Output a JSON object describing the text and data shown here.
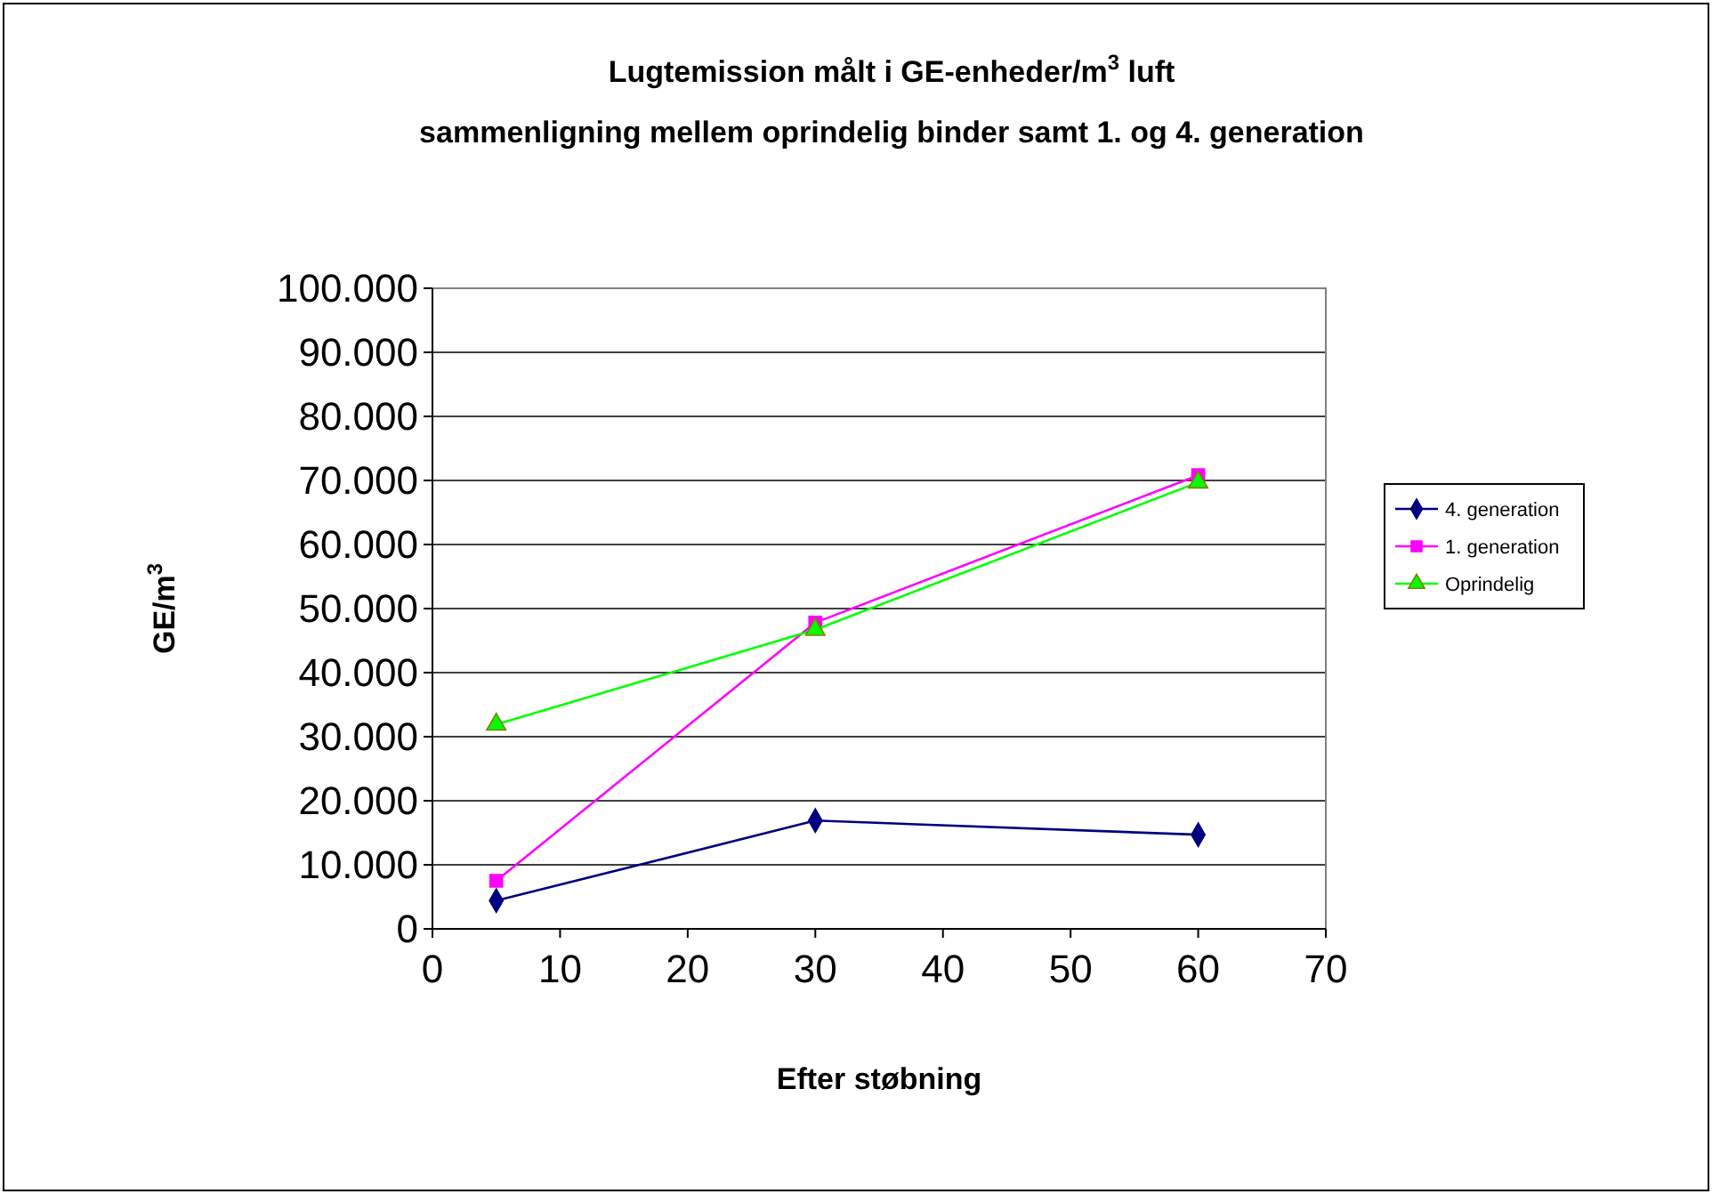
{
  "chart_data": {
    "type": "line",
    "title": "Lugtemission målt i GE-enheder/m$^{3}$ luft",
    "subtitle": "sammenligning mellem oprindelig binder samt 1. og 4. generation",
    "xlabel": "Efter støbning",
    "ylabel": "GE/m$^{3}$",
    "x": [
      5,
      30,
      60
    ],
    "series": [
      {
        "name": "4. generation",
        "color": "#000080",
        "marker": "diamond",
        "values": [
          4400,
          16900,
          14700
        ]
      },
      {
        "name": "1. generation",
        "color": "#ff00ff",
        "marker": "square",
        "values": [
          7500,
          47800,
          70800
        ]
      },
      {
        "name": "Oprindelig",
        "color": "#00ff00",
        "marker": "triangle",
        "values": [
          31900,
          46700,
          69700
        ]
      }
    ],
    "xlim": [
      0,
      70
    ],
    "xticks": [
      0,
      10,
      20,
      30,
      40,
      50,
      60,
      70
    ],
    "ylim": [
      0,
      100000
    ],
    "yticks": [
      {
        "value": 0,
        "label": "0"
      },
      {
        "value": 10000,
        "label": "10.000"
      },
      {
        "value": 20000,
        "label": "20.000"
      },
      {
        "value": 30000,
        "label": "30.000"
      },
      {
        "value": 40000,
        "label": "40.000"
      },
      {
        "value": 50000,
        "label": "50.000"
      },
      {
        "value": 60000,
        "label": "60.000"
      },
      {
        "value": 70000,
        "label": "70.000"
      },
      {
        "value": 80000,
        "label": "80.000"
      },
      {
        "value": 90000,
        "label": "90.000"
      },
      {
        "value": 100000,
        "label": "100.000"
      }
    ],
    "grid": "y",
    "legend": "right",
    "line_style": "solid"
  }
}
